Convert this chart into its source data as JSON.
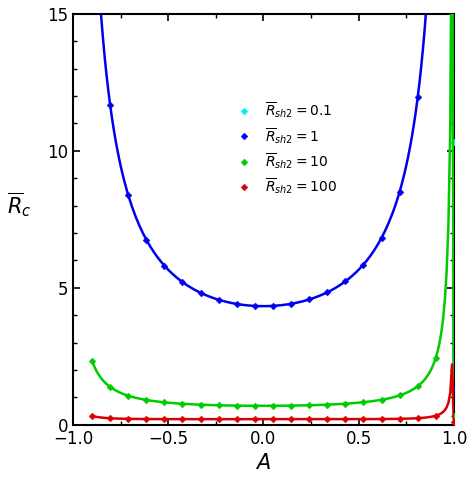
{
  "title": "",
  "xlabel": "$A$",
  "ylabel": "$\\overline{R}_c$",
  "xlim": [
    -1,
    1
  ],
  "ylim": [
    0,
    15
  ],
  "xticks": [
    -1,
    -0.5,
    0,
    0.5,
    1
  ],
  "yticks": [
    0,
    5,
    10,
    15
  ],
  "Rsh2_values": [
    0.1,
    1,
    10,
    100
  ],
  "colors": [
    "cyan",
    "#00FFFF",
    "#0000FF",
    "#00CC00",
    "#FF0000"
  ],
  "line_colors": [
    "#00EEFF",
    "#0000EE",
    "#00CC00",
    "#DD0000"
  ],
  "marker": "D",
  "markersize": 3.5,
  "linewidth": 1.8,
  "n_points": 21,
  "legend_labels": [
    "$\\overline{R}_{sh2} = 0.1$",
    "$\\overline{R}_{sh2} = 1$",
    "$\\overline{R}_{sh2} = 10$",
    "$\\overline{R}_{sh2} = 100$"
  ],
  "background_color": "#ffffff"
}
